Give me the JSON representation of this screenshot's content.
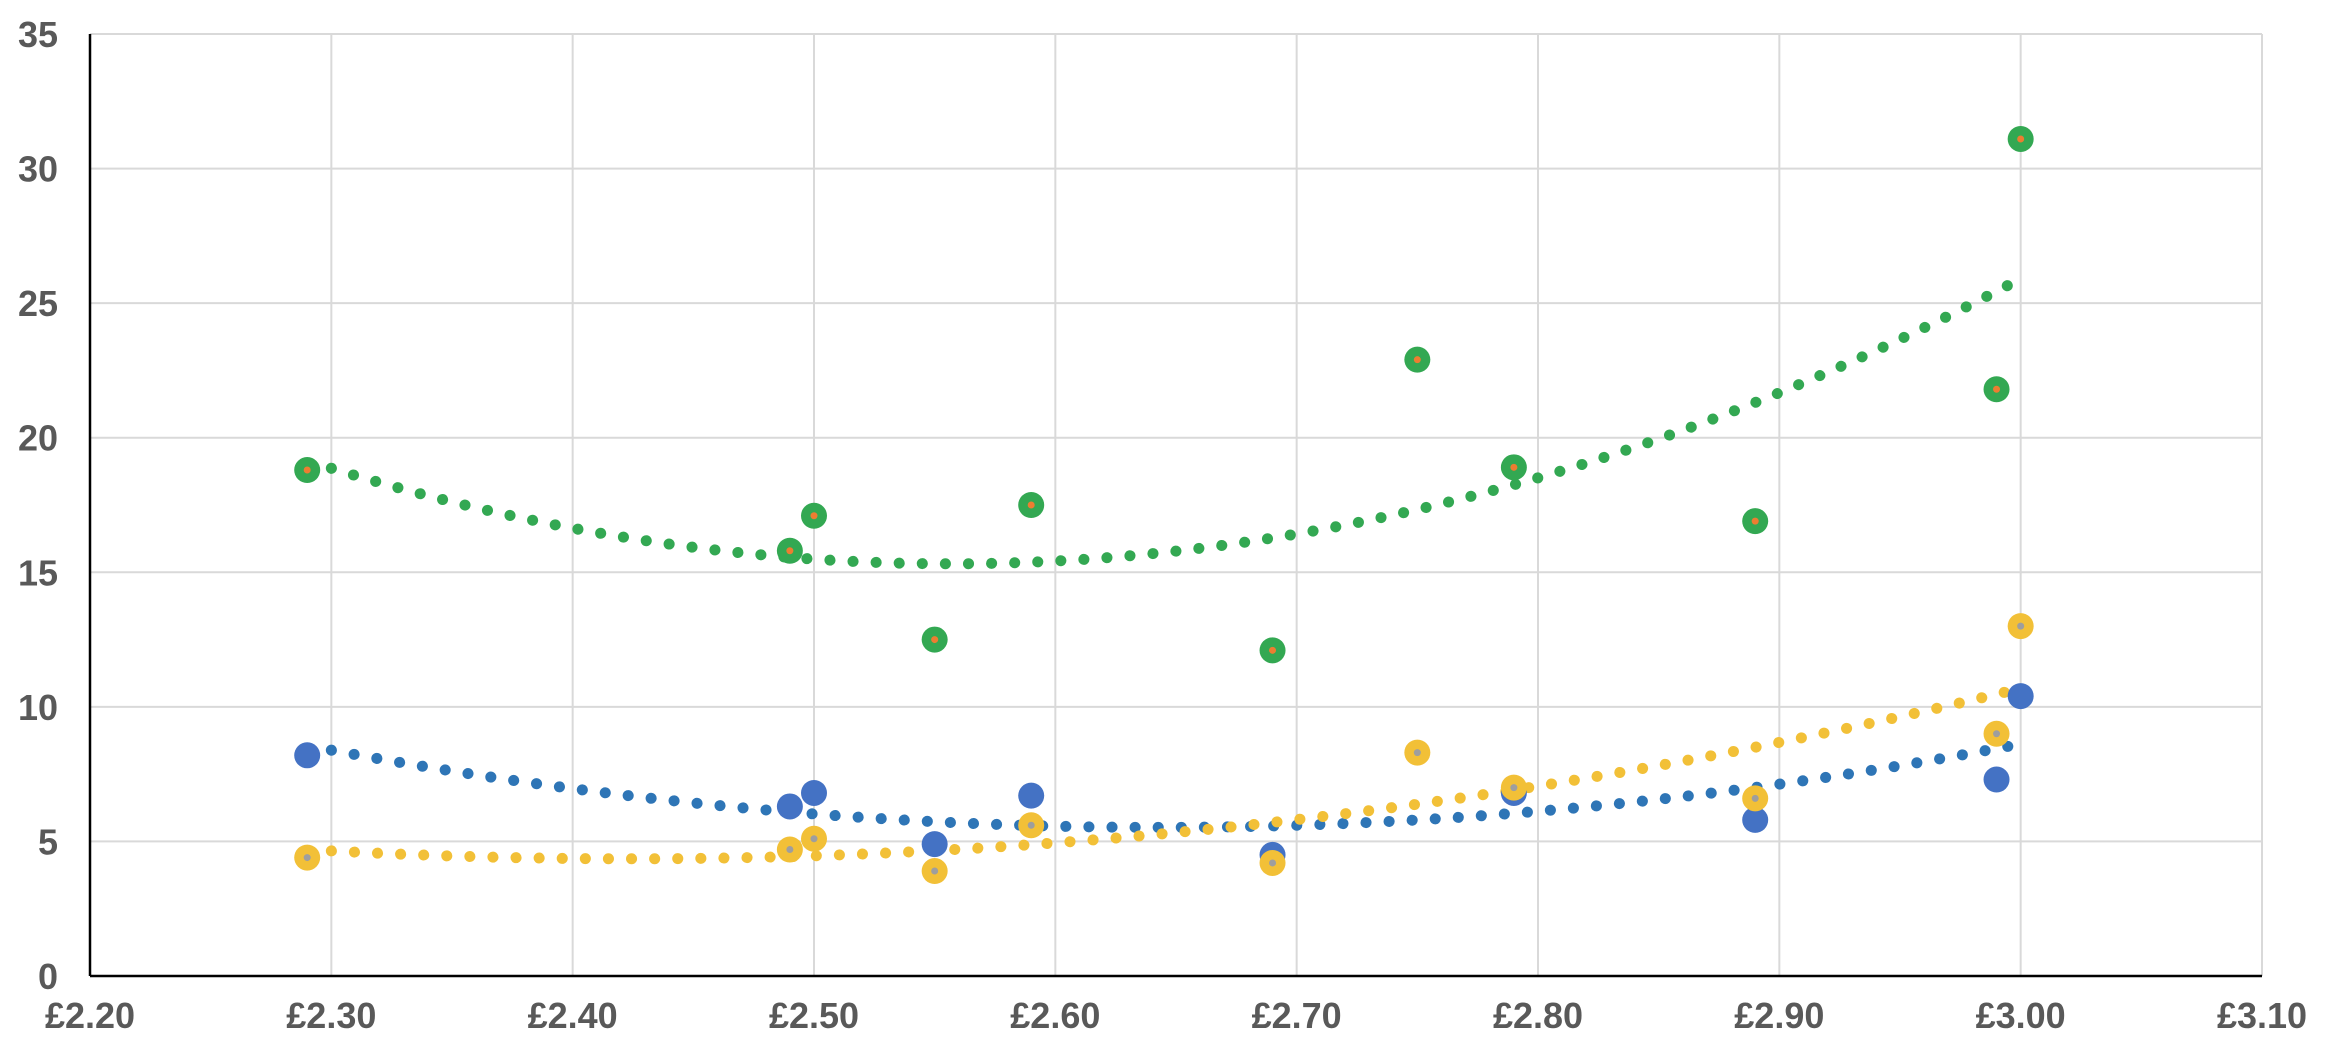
{
  "chart_data": {
    "type": "scatter",
    "title": "",
    "xlabel": "",
    "ylabel": "",
    "xlim": [
      2.2,
      3.1
    ],
    "ylim": [
      0,
      35
    ],
    "x_ticks": [
      2.2,
      2.3,
      2.4,
      2.5,
      2.6,
      2.7,
      2.8,
      2.9,
      3.0,
      3.1
    ],
    "x_tick_labels": [
      "£2.20",
      "£2.30",
      "£2.40",
      "£2.50",
      "£2.60",
      "£2.70",
      "£2.80",
      "£2.90",
      "£3.00",
      "£3.10"
    ],
    "y_ticks": [
      0,
      5,
      10,
      15,
      20,
      25,
      30,
      35
    ],
    "y_tick_labels": [
      "0",
      "5",
      "10",
      "15",
      "20",
      "25",
      "30",
      "35"
    ],
    "grid": true,
    "legend": "none",
    "series": [
      {
        "color": "#4472C4",
        "trend_color": "#2E75B6",
        "trend": "polynomial-2",
        "trend_x_range": [
          2.3,
          3.0
        ],
        "points": [
          {
            "x": 2.29,
            "y": 8.2
          },
          {
            "x": 2.49,
            "y": 6.3
          },
          {
            "x": 2.5,
            "y": 6.8
          },
          {
            "x": 2.55,
            "y": 4.9
          },
          {
            "x": 2.59,
            "y": 6.7
          },
          {
            "x": 2.69,
            "y": 4.5
          },
          {
            "x": 2.79,
            "y": 6.8
          },
          {
            "x": 2.89,
            "y": 5.8
          },
          {
            "x": 2.99,
            "y": 7.3
          },
          {
            "x": 3.0,
            "y": 10.4
          }
        ]
      },
      {
        "color": "#F2C037",
        "center_color": "#9E9E9E",
        "trend_color": "#F2C037",
        "trend": "polynomial-2",
        "trend_x_range": [
          2.3,
          3.0
        ],
        "points": [
          {
            "x": 2.29,
            "y": 4.4
          },
          {
            "x": 2.49,
            "y": 4.7
          },
          {
            "x": 2.5,
            "y": 5.1
          },
          {
            "x": 2.55,
            "y": 3.9
          },
          {
            "x": 2.59,
            "y": 5.6
          },
          {
            "x": 2.69,
            "y": 4.2
          },
          {
            "x": 2.75,
            "y": 8.3
          },
          {
            "x": 2.79,
            "y": 7.0
          },
          {
            "x": 2.89,
            "y": 6.6
          },
          {
            "x": 2.99,
            "y": 9.0
          },
          {
            "x": 3.0,
            "y": 13.0
          }
        ]
      },
      {
        "color": "#33A852",
        "center_color": "#ED7D31",
        "trend_color": "#33A852",
        "trend": "polynomial-2",
        "trend_x_range": [
          2.3,
          3.0
        ],
        "points": [
          {
            "x": 2.29,
            "y": 18.8
          },
          {
            "x": 2.49,
            "y": 15.8
          },
          {
            "x": 2.5,
            "y": 17.1
          },
          {
            "x": 2.55,
            "y": 12.5
          },
          {
            "x": 2.59,
            "y": 17.5
          },
          {
            "x": 2.69,
            "y": 12.1
          },
          {
            "x": 2.75,
            "y": 22.9
          },
          {
            "x": 2.79,
            "y": 18.9
          },
          {
            "x": 2.89,
            "y": 16.9
          },
          {
            "x": 2.99,
            "y": 21.8
          },
          {
            "x": 3.0,
            "y": 31.1
          }
        ]
      }
    ]
  }
}
